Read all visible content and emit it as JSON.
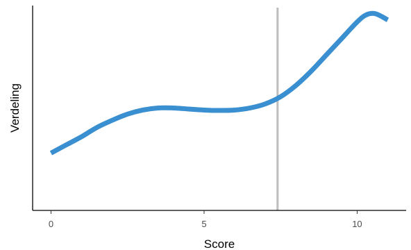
{
  "chart_data": {
    "type": "line",
    "title": "",
    "xlabel": "Score",
    "ylabel": "Verdeling",
    "xlim": [
      -0.6,
      11.6
    ],
    "ylim": [
      0,
      1
    ],
    "x_ticks": [
      "0",
      "5",
      "10"
    ],
    "y_ticks_shown": false,
    "grid": false,
    "legend": "none",
    "reference_line": {
      "x": 7.4,
      "color": "#bdbdbd"
    },
    "series": [
      {
        "color": "#3a8fd1",
        "x": [
          0,
          0.5,
          1,
          1.5,
          2,
          2.5,
          3,
          3.5,
          4,
          4.5,
          5,
          5.5,
          6,
          6.5,
          7,
          7.5,
          8,
          8.5,
          9,
          9.5,
          10,
          10.3,
          10.6,
          11
        ],
        "y": [
          0.28,
          0.32,
          0.36,
          0.405,
          0.44,
          0.47,
          0.49,
          0.5,
          0.5,
          0.495,
          0.49,
          0.488,
          0.49,
          0.5,
          0.52,
          0.555,
          0.61,
          0.68,
          0.76,
          0.84,
          0.92,
          0.955,
          0.96,
          0.93
        ]
      }
    ]
  }
}
